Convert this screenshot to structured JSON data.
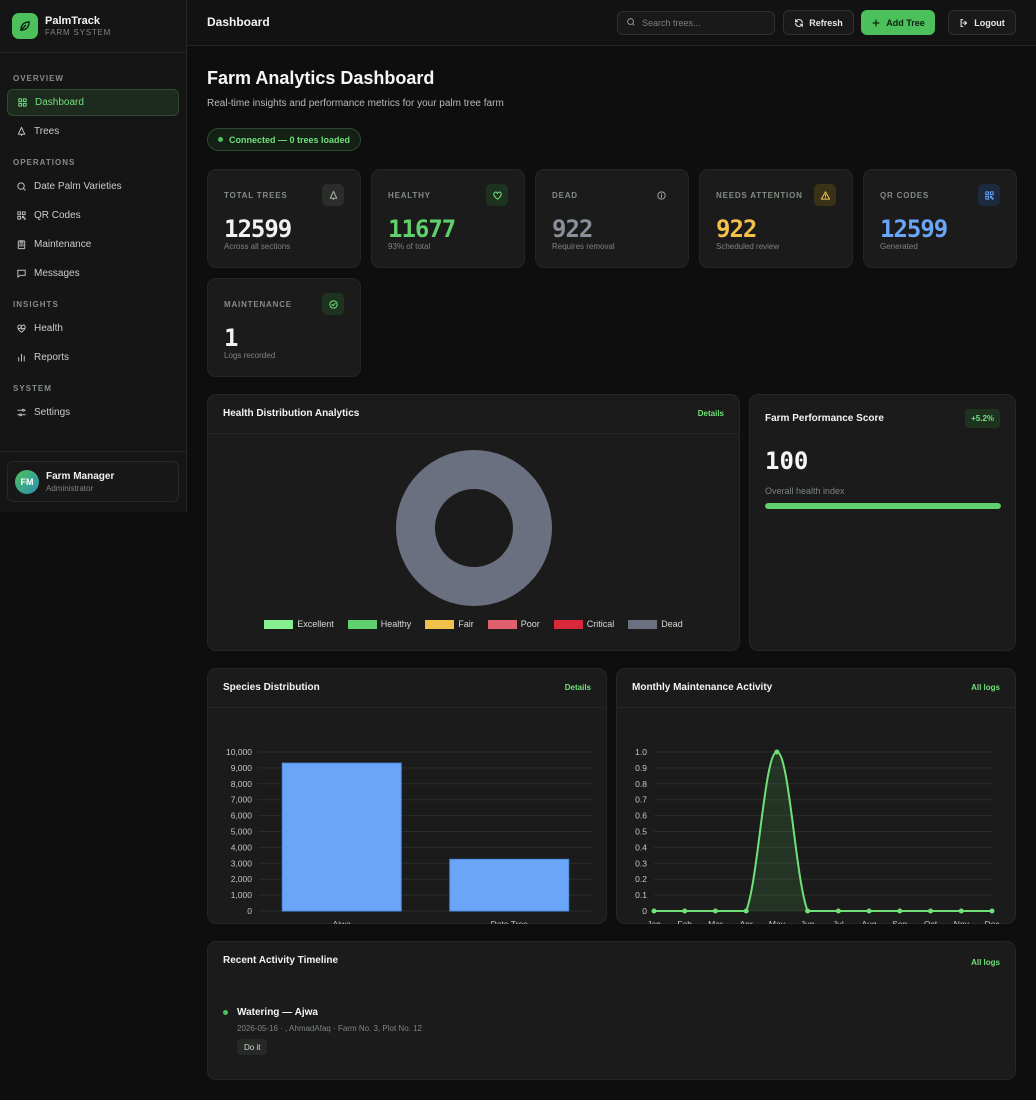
{
  "brand": {
    "name": "PalmTrack",
    "subtitle": "FARM SYSTEM",
    "logo_icon": "leaf-icon"
  },
  "sidebar": {
    "sections": [
      {
        "label": "OVERVIEW",
        "items": [
          {
            "label": "Dashboard",
            "icon": "grid-icon",
            "active": true
          },
          {
            "label": "Trees",
            "icon": "tree-icon"
          }
        ]
      },
      {
        "label": "OPERATIONS",
        "items": [
          {
            "label": "Date Palm Varieties",
            "icon": "search-icon"
          },
          {
            "label": "QR Codes",
            "icon": "qr-icon"
          },
          {
            "label": "Maintenance",
            "icon": "clipboard-icon"
          },
          {
            "label": "Messages",
            "icon": "message-icon"
          }
        ]
      },
      {
        "label": "INSIGHTS",
        "items": [
          {
            "label": "Health",
            "icon": "heart-pulse-icon"
          },
          {
            "label": "Reports",
            "icon": "bar-chart-icon"
          }
        ]
      },
      {
        "label": "SYSTEM",
        "items": [
          {
            "label": "Settings",
            "icon": "sliders-icon"
          }
        ]
      }
    ],
    "user": {
      "initials": "FM",
      "name": "Farm Manager",
      "role": "Administrator"
    }
  },
  "topbar": {
    "title": "Dashboard",
    "search_placeholder": "Search trees...",
    "refresh_label": "Refresh",
    "add_label": "Add Tree",
    "logout_label": "Logout"
  },
  "page": {
    "title": "Farm Analytics Dashboard",
    "subtitle": "Real-time insights and performance metrics for your palm tree farm",
    "connection": "Connected — 0 trees loaded"
  },
  "stats": [
    {
      "label": "TOTAL TREES",
      "value": "12599",
      "note": "Across all sections",
      "color": "#f0f3f0",
      "icon": "tree-icon",
      "icon_bg": "#2a2d2a",
      "icon_color": "#a9b0a9"
    },
    {
      "label": "HEALTHY",
      "value": "11677",
      "note": "93% of total",
      "color": "#5fd06b",
      "icon": "heart-icon",
      "icon_bg": "#1d3320",
      "icon_color": "#6fe07a"
    },
    {
      "label": "DEAD",
      "value": "922",
      "note": "Requires removal",
      "color": "#8a8f99",
      "icon": "info-icon",
      "icon_bg": "transparent",
      "icon_color": "#9aa09a"
    },
    {
      "label": "NEEDS ATTENTION",
      "value": "922",
      "note": "Scheduled review",
      "color": "#f2c14b",
      "icon": "warning-icon",
      "icon_bg": "#3a3216",
      "icon_color": "#f2c14b"
    },
    {
      "label": "QR CODES",
      "value": "12599",
      "note": "Generated",
      "color": "#6aa5f7",
      "icon": "qr-icon",
      "icon_bg": "#1c2a40",
      "icon_color": "#6aa5f7"
    },
    {
      "label": "MAINTENANCE",
      "value": "1",
      "note": "Logs recorded",
      "color": "#f0f3f0",
      "icon": "check-circle-icon",
      "icon_bg": "#1d3320",
      "icon_color": "#6fe07a"
    }
  ],
  "health_card": {
    "title": "Health Distribution Analytics",
    "link": "Details",
    "chart_data": {
      "type": "pie",
      "labels": [
        "Excellent",
        "Healthy",
        "Fair",
        "Poor",
        "Critical",
        "Dead"
      ],
      "values": [
        0,
        0,
        0,
        0,
        0,
        1
      ],
      "colors": [
        "#86ef8f",
        "#5fd06b",
        "#f2c14b",
        "#e0606e",
        "#d9283c",
        "#6b7080"
      ],
      "legend": "bottom"
    }
  },
  "performance": {
    "title": "Farm Performance Score",
    "badge": "+5.2%",
    "value": "100",
    "label": "Overall health index",
    "fill_percent": 100
  },
  "species_card": {
    "title": "Species Distribution",
    "link": "Details",
    "chart_data": {
      "type": "bar",
      "categories": [
        "Ajwa",
        "Date Tree"
      ],
      "values": [
        9300,
        3250
      ],
      "ylim": [
        0,
        10000
      ],
      "yticks": [
        "0",
        "1,000",
        "2,000",
        "3,000",
        "4,000",
        "5,000",
        "6,000",
        "7,000",
        "8,000",
        "9,000",
        "10,000"
      ],
      "color": "#6aa5f7",
      "grid": true
    }
  },
  "maintenance_card": {
    "title": "Monthly Maintenance Activity",
    "link": "All logs",
    "chart_data": {
      "type": "area",
      "x": [
        "Jan",
        "Feb",
        "Mar",
        "Apr",
        "May",
        "Jun",
        "Jul",
        "Aug",
        "Sep",
        "Oct",
        "Nov",
        "Dec"
      ],
      "values": [
        0,
        0,
        0,
        0,
        1,
        0,
        0,
        0,
        0,
        0,
        0,
        0
      ],
      "ylim": [
        0,
        1.0
      ],
      "yticks": [
        "0",
        "0.1",
        "0.2",
        "0.3",
        "0.4",
        "0.5",
        "0.6",
        "0.7",
        "0.8",
        "0.9",
        "1.0"
      ],
      "color": "#6fe07a",
      "grid": true
    }
  },
  "timeline": {
    "title": "Recent Activity Timeline",
    "link": "All logs",
    "items": [
      {
        "title": "Watering — Ajwa",
        "meta": "2026-05-16 · , AhmadAfaq · Farm No. 3, Plot No. 12",
        "tag": "Do it"
      }
    ]
  }
}
